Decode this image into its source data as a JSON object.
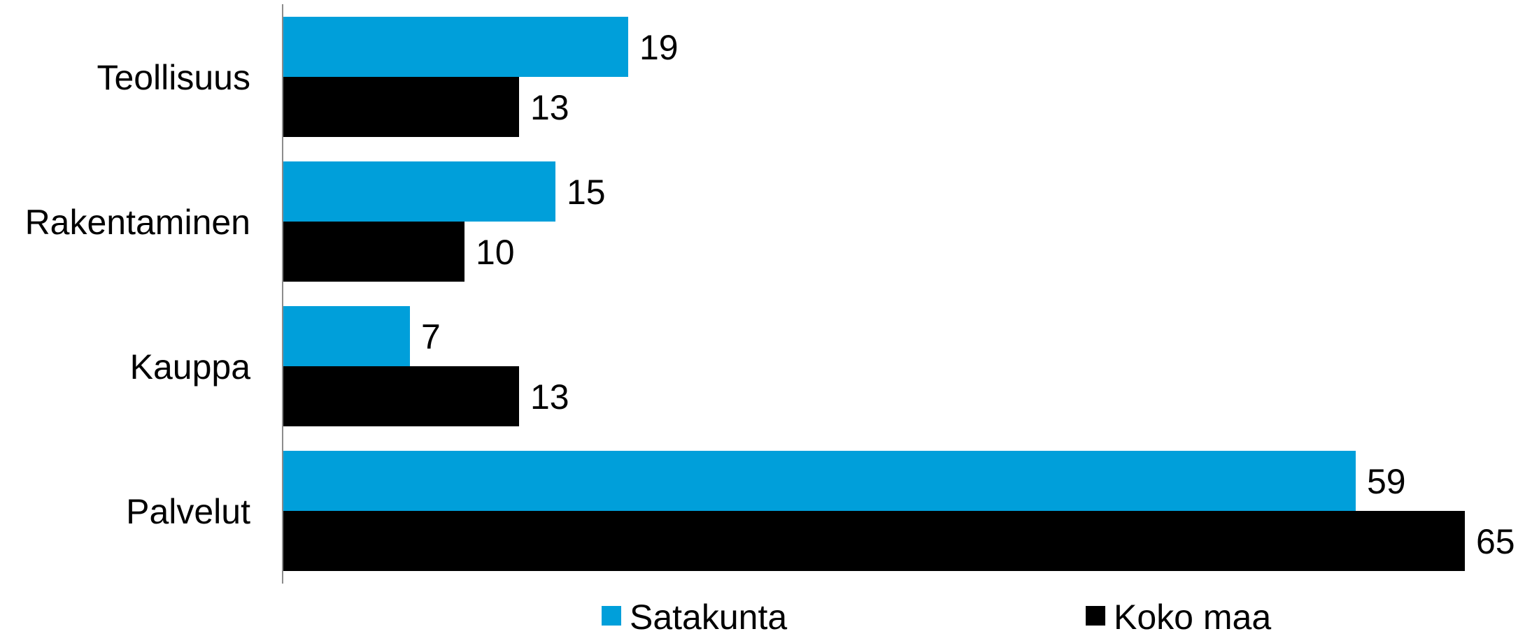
{
  "chart_data": {
    "type": "bar",
    "orientation": "horizontal",
    "categories": [
      "Teollisuus",
      "Rakentaminen",
      "Kauppa",
      "Palvelut"
    ],
    "series": [
      {
        "name": "Satakunta",
        "values": [
          19,
          15,
          7,
          59
        ],
        "color": "#009FDA"
      },
      {
        "name": "Koko maa",
        "values": [
          13,
          10,
          13,
          65
        ],
        "color": "#000000"
      }
    ],
    "xlim": [
      0,
      68
    ],
    "data_labels": true,
    "grid": false,
    "legend_position": "bottom"
  }
}
